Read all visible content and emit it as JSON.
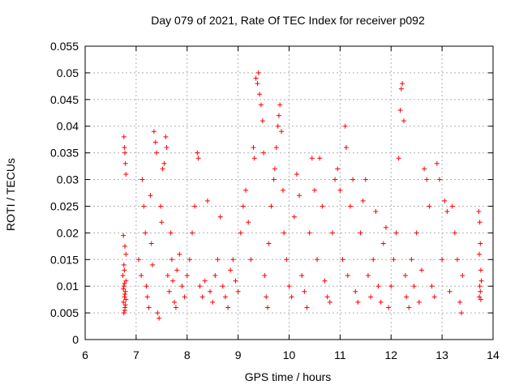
{
  "chart_data": {
    "type": "scatter",
    "title": "Day 079 of 2021, Rate Of TEC Index for receiver p092",
    "xlabel": "GPS time / hours",
    "ylabel": "ROTI / TECUs",
    "xlim": [
      6,
      14
    ],
    "ylim": [
      0,
      0.055
    ],
    "xticks": [
      "6",
      "7",
      "8",
      "9",
      "10",
      "11",
      "12",
      "13",
      "14"
    ],
    "yticks": [
      "0",
      "0.005",
      "0.01",
      "0.015",
      "0.02",
      "0.025",
      "0.03",
      "0.035",
      "0.04",
      "0.045",
      "0.05",
      "0.055"
    ],
    "grid": true,
    "marker": "+",
    "color": "#ff0000",
    "series": [
      {
        "name": "ROTI",
        "points": [
          [
            6.76,
            0.038
          ],
          [
            6.77,
            0.036
          ],
          [
            6.78,
            0.035
          ],
          [
            6.79,
            0.033
          ],
          [
            6.8,
            0.031
          ],
          [
            6.75,
            0.0195
          ],
          [
            6.78,
            0.0175
          ],
          [
            6.8,
            0.016
          ],
          [
            6.74,
            0.012
          ],
          [
            6.76,
            0.01
          ],
          [
            6.77,
            0.008
          ],
          [
            6.78,
            0.006
          ],
          [
            6.75,
            0.007
          ],
          [
            6.79,
            0.009
          ],
          [
            6.76,
            0.005
          ],
          [
            6.8,
            0.011
          ],
          [
            6.77,
            0.013
          ],
          [
            6.78,
            0.0085
          ],
          [
            6.79,
            0.0065
          ],
          [
            6.75,
            0.0095
          ],
          [
            6.8,
            0.0075
          ],
          [
            6.76,
            0.014
          ],
          [
            6.77,
            0.0105
          ],
          [
            6.78,
            0.0055
          ],
          [
            7.05,
            0.015
          ],
          [
            7.1,
            0.012
          ],
          [
            7.12,
            0.03
          ],
          [
            7.15,
            0.025
          ],
          [
            7.18,
            0.02
          ],
          [
            7.2,
            0.01
          ],
          [
            7.22,
            0.008
          ],
          [
            7.25,
            0.006
          ],
          [
            7.28,
            0.027
          ],
          [
            7.3,
            0.018
          ],
          [
            7.32,
            0.014
          ],
          [
            7.35,
            0.039
          ],
          [
            7.38,
            0.037
          ],
          [
            7.4,
            0.035
          ],
          [
            7.42,
            0.005
          ],
          [
            7.45,
            0.004
          ],
          [
            7.48,
            0.025
          ],
          [
            7.5,
            0.022
          ],
          [
            7.52,
            0.032
          ],
          [
            7.55,
            0.033
          ],
          [
            7.58,
            0.038
          ],
          [
            7.6,
            0.036
          ],
          [
            7.62,
            0.012
          ],
          [
            7.65,
            0.009
          ],
          [
            7.68,
            0.02
          ],
          [
            7.7,
            0.015
          ],
          [
            7.72,
            0.011
          ],
          [
            7.75,
            0.007
          ],
          [
            7.78,
            0.006
          ],
          [
            7.8,
            0.013
          ],
          [
            7.85,
            0.016
          ],
          [
            7.9,
            0.01
          ],
          [
            7.95,
            0.008
          ],
          [
            8.0,
            0.012
          ],
          [
            8.05,
            0.015
          ],
          [
            8.1,
            0.02
          ],
          [
            8.15,
            0.025
          ],
          [
            8.2,
            0.035
          ],
          [
            8.22,
            0.034
          ],
          [
            8.25,
            0.01
          ],
          [
            8.3,
            0.008
          ],
          [
            8.35,
            0.011
          ],
          [
            8.4,
            0.026
          ],
          [
            8.45,
            0.009
          ],
          [
            8.5,
            0.007
          ],
          [
            8.55,
            0.012
          ],
          [
            8.6,
            0.015
          ],
          [
            8.65,
            0.023
          ],
          [
            8.7,
            0.01
          ],
          [
            8.75,
            0.008
          ],
          [
            8.8,
            0.006
          ],
          [
            8.85,
            0.013
          ],
          [
            8.9,
            0.015
          ],
          [
            8.95,
            0.011
          ],
          [
            9.0,
            0.009
          ],
          [
            9.05,
            0.02
          ],
          [
            9.1,
            0.025
          ],
          [
            9.15,
            0.028
          ],
          [
            9.2,
            0.022
          ],
          [
            9.25,
            0.015
          ],
          [
            9.3,
            0.036
          ],
          [
            9.32,
            0.034
          ],
          [
            9.35,
            0.049
          ],
          [
            9.38,
            0.048
          ],
          [
            9.4,
            0.05
          ],
          [
            9.42,
            0.046
          ],
          [
            9.45,
            0.044
          ],
          [
            9.48,
            0.041
          ],
          [
            9.5,
            0.035
          ],
          [
            9.52,
            0.012
          ],
          [
            9.55,
            0.008
          ],
          [
            9.58,
            0.006
          ],
          [
            9.6,
            0.018
          ],
          [
            9.65,
            0.025
          ],
          [
            9.7,
            0.03
          ],
          [
            9.72,
            0.032
          ],
          [
            9.75,
            0.036
          ],
          [
            9.78,
            0.04
          ],
          [
            9.8,
            0.042
          ],
          [
            9.82,
            0.044
          ],
          [
            9.85,
            0.039
          ],
          [
            9.88,
            0.028
          ],
          [
            9.9,
            0.02
          ],
          [
            9.95,
            0.015
          ],
          [
            10.0,
            0.01
          ],
          [
            10.05,
            0.008
          ],
          [
            10.1,
            0.023
          ],
          [
            10.15,
            0.031
          ],
          [
            10.2,
            0.027
          ],
          [
            10.25,
            0.012
          ],
          [
            10.3,
            0.009
          ],
          [
            10.35,
            0.006
          ],
          [
            10.4,
            0.02
          ],
          [
            10.45,
            0.034
          ],
          [
            10.5,
            0.028
          ],
          [
            10.55,
            0.015
          ],
          [
            10.6,
            0.034
          ],
          [
            10.65,
            0.025
          ],
          [
            10.7,
            0.011
          ],
          [
            10.75,
            0.008
          ],
          [
            10.8,
            0.007
          ],
          [
            10.85,
            0.02
          ],
          [
            10.9,
            0.03
          ],
          [
            10.95,
            0.032
          ],
          [
            11.0,
            0.028
          ],
          [
            11.05,
            0.015
          ],
          [
            11.1,
            0.04
          ],
          [
            11.12,
            0.036
          ],
          [
            11.15,
            0.012
          ],
          [
            11.2,
            0.025
          ],
          [
            11.25,
            0.03
          ],
          [
            11.3,
            0.009
          ],
          [
            11.35,
            0.007
          ],
          [
            11.4,
            0.02
          ],
          [
            11.45,
            0.026
          ],
          [
            11.5,
            0.03
          ],
          [
            11.55,
            0.012
          ],
          [
            11.6,
            0.008
          ],
          [
            11.65,
            0.015
          ],
          [
            11.7,
            0.024
          ],
          [
            11.75,
            0.01
          ],
          [
            11.8,
            0.007
          ],
          [
            11.85,
            0.018
          ],
          [
            11.9,
            0.021
          ],
          [
            11.95,
            0.006
          ],
          [
            12.0,
            0.01
          ],
          [
            12.05,
            0.015
          ],
          [
            12.1,
            0.02
          ],
          [
            12.15,
            0.034
          ],
          [
            12.18,
            0.043
          ],
          [
            12.2,
            0.047
          ],
          [
            12.22,
            0.048
          ],
          [
            12.25,
            0.041
          ],
          [
            12.28,
            0.012
          ],
          [
            12.3,
            0.008
          ],
          [
            12.35,
            0.006
          ],
          [
            12.4,
            0.015
          ],
          [
            12.45,
            0.01
          ],
          [
            12.5,
            0.02
          ],
          [
            12.55,
            0.007
          ],
          [
            12.6,
            0.013
          ],
          [
            12.65,
            0.032
          ],
          [
            12.7,
            0.03
          ],
          [
            12.75,
            0.025
          ],
          [
            12.8,
            0.01
          ],
          [
            12.85,
            0.008
          ],
          [
            12.9,
            0.033
          ],
          [
            12.95,
            0.03
          ],
          [
            13.0,
            0.015
          ],
          [
            13.05,
            0.026
          ],
          [
            13.1,
            0.024
          ],
          [
            13.15,
            0.009
          ],
          [
            13.2,
            0.025
          ],
          [
            13.25,
            0.02
          ],
          [
            13.3,
            0.015
          ],
          [
            13.35,
            0.007
          ],
          [
            13.38,
            0.005
          ],
          [
            13.4,
            0.012
          ],
          [
            13.72,
            0.024
          ],
          [
            13.74,
            0.022
          ],
          [
            13.75,
            0.018
          ],
          [
            13.73,
            0.016
          ],
          [
            13.76,
            0.013
          ],
          [
            13.74,
            0.01
          ],
          [
            13.75,
            0.009
          ],
          [
            13.73,
            0.008
          ],
          [
            13.77,
            0.011
          ],
          [
            13.76,
            0.0075
          ]
        ]
      }
    ]
  }
}
